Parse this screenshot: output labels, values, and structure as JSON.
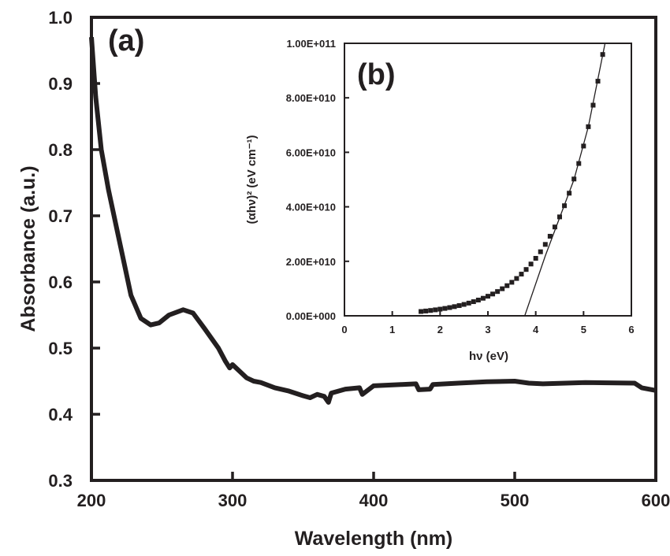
{
  "chart_data": [
    {
      "type": "line",
      "panel_label": "(a)",
      "xlabel": "Wavelength (nm)",
      "ylabel": "Absorbance (a.u.)",
      "xlim": [
        200,
        600
      ],
      "ylim": [
        0.3,
        1.0
      ],
      "xticks": [
        "200",
        "300",
        "400",
        "500",
        "600"
      ],
      "yticks": [
        "0.3",
        "0.4",
        "0.5",
        "0.6",
        "0.7",
        "0.8",
        "0.9",
        "1.0"
      ],
      "grid": false,
      "line_color": "#231f20",
      "x": [
        200,
        203,
        207,
        212,
        218,
        222,
        228,
        235,
        242,
        248,
        255,
        265,
        272,
        280,
        290,
        295,
        298,
        300,
        305,
        310,
        315,
        320,
        330,
        340,
        350,
        355,
        360,
        365,
        368,
        370,
        375,
        380,
        390,
        392,
        400,
        420,
        430,
        432,
        440,
        442,
        460,
        480,
        500,
        510,
        520,
        550,
        585,
        590,
        600
      ],
      "y": [
        0.97,
        0.88,
        0.8,
        0.74,
        0.68,
        0.64,
        0.58,
        0.545,
        0.535,
        0.538,
        0.55,
        0.558,
        0.553,
        0.53,
        0.5,
        0.48,
        0.47,
        0.475,
        0.465,
        0.455,
        0.45,
        0.448,
        0.44,
        0.435,
        0.428,
        0.425,
        0.43,
        0.427,
        0.418,
        0.432,
        0.435,
        0.438,
        0.44,
        0.43,
        0.443,
        0.445,
        0.446,
        0.437,
        0.438,
        0.445,
        0.447,
        0.449,
        0.45,
        0.447,
        0.446,
        0.448,
        0.447,
        0.44,
        0.436
      ]
    },
    {
      "type": "scatter",
      "panel_label": "(b)",
      "xlabel": "hν (eV)",
      "ylabel": "(αhν)² (eV cm⁻¹)",
      "xlim": [
        0,
        6
      ],
      "ylim": [
        0,
        100000000000.0
      ],
      "xticks": [
        "0",
        "1",
        "2",
        "3",
        "4",
        "5",
        "6"
      ],
      "yticks": [
        "0.00E+000",
        "2.00E+010",
        "4.00E+010",
        "6.00E+010",
        "8.00E+010",
        "1.00E+011"
      ],
      "grid": false,
      "marker": "square",
      "marker_color": "#231f20",
      "x": [
        1.6,
        1.7,
        1.8,
        1.9,
        2.0,
        2.1,
        2.2,
        2.3,
        2.4,
        2.5,
        2.6,
        2.7,
        2.8,
        2.9,
        3.0,
        3.1,
        3.2,
        3.3,
        3.4,
        3.5,
        3.6,
        3.7,
        3.8,
        3.9,
        4.0,
        4.1,
        4.2,
        4.3,
        4.4,
        4.5,
        4.6,
        4.7,
        4.8,
        4.9,
        5.0,
        5.1,
        5.2,
        5.3,
        5.4
      ],
      "y": [
        1580000000.0,
        1760000000.0,
        1960000000.0,
        2190000000.0,
        2440000000.0,
        2710000000.0,
        3020000000.0,
        3370000000.0,
        3750000000.0,
        4180000000.0,
        4660000000.0,
        5190000000.0,
        5780000000.0,
        6440000000.0,
        7180000000.0,
        8000000000.0,
        8910000000.0,
        9930000000.0,
        11060000000.0,
        12300000000.0,
        13700000000.0,
        15300000000.0,
        17000000000.0,
        19000000000.0,
        21100000000.0,
        23500000000.0,
        26200000000.0,
        29200000000.0,
        32600000000.0,
        36300000000.0,
        40400000000.0,
        45000000000.0,
        50200000000.0,
        55900000000.0,
        62300000000.0,
        69400000000.0,
        77300000000.0,
        86100000000.0,
        95900000000.0
      ],
      "fit_line": {
        "x": [
          3.77,
          4.2,
          4.5,
          4.8,
          5.1,
          5.45
        ],
        "y": [
          0,
          22000000000.0,
          36000000000.0,
          50000000000.0,
          69400000000.0,
          100000000000.0
        ]
      }
    }
  ]
}
